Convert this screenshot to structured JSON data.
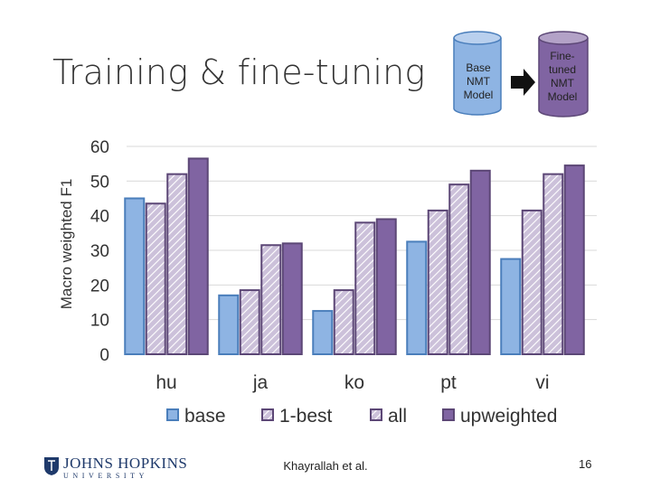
{
  "slide": {
    "title": "Training & fine-tuning",
    "footer": "Khayrallah et al.",
    "page_number": "16",
    "logo": {
      "main": "JOHNS HOPKINS",
      "sub": "UNIVERSITY"
    },
    "diagram": {
      "base_model_label": "Base NMT Model",
      "finetuned_model_label": "Fine-tuned NMT Model",
      "arrow": "right-arrow-icon"
    }
  },
  "colors": {
    "base": "#8eb4e3",
    "one_best": "#ccc1da",
    "all": "#ccc1da",
    "upweighted": "#8064a2",
    "border_base": "#4a7ebb",
    "border_purple": "#5c4776",
    "grid": "#d9d9d9",
    "cyl_base": "#8eb4e3",
    "cyl_finetuned": "#8064a2"
  },
  "chart_data": {
    "type": "bar",
    "title": "",
    "xlabel": "",
    "ylabel": "Macro weighted F1",
    "ylim": [
      0,
      60
    ],
    "yticks": [
      0,
      10,
      20,
      30,
      40,
      50,
      60
    ],
    "grid": true,
    "legend_position": "bottom",
    "categories": [
      "hu",
      "ja",
      "ko",
      "pt",
      "vi"
    ],
    "series": [
      {
        "name": "base",
        "key": "base",
        "values": [
          45,
          17,
          12.5,
          32.5,
          27.5
        ]
      },
      {
        "name": "1-best",
        "key": "one_best",
        "values": [
          43.5,
          18.5,
          18.5,
          41.5,
          41.5
        ]
      },
      {
        "name": "all",
        "key": "all",
        "values": [
          52,
          31.5,
          38,
          49,
          52
        ]
      },
      {
        "name": "upweighted",
        "key": "upweighted",
        "values": [
          56.5,
          32,
          39,
          53,
          54.5
        ]
      }
    ]
  }
}
